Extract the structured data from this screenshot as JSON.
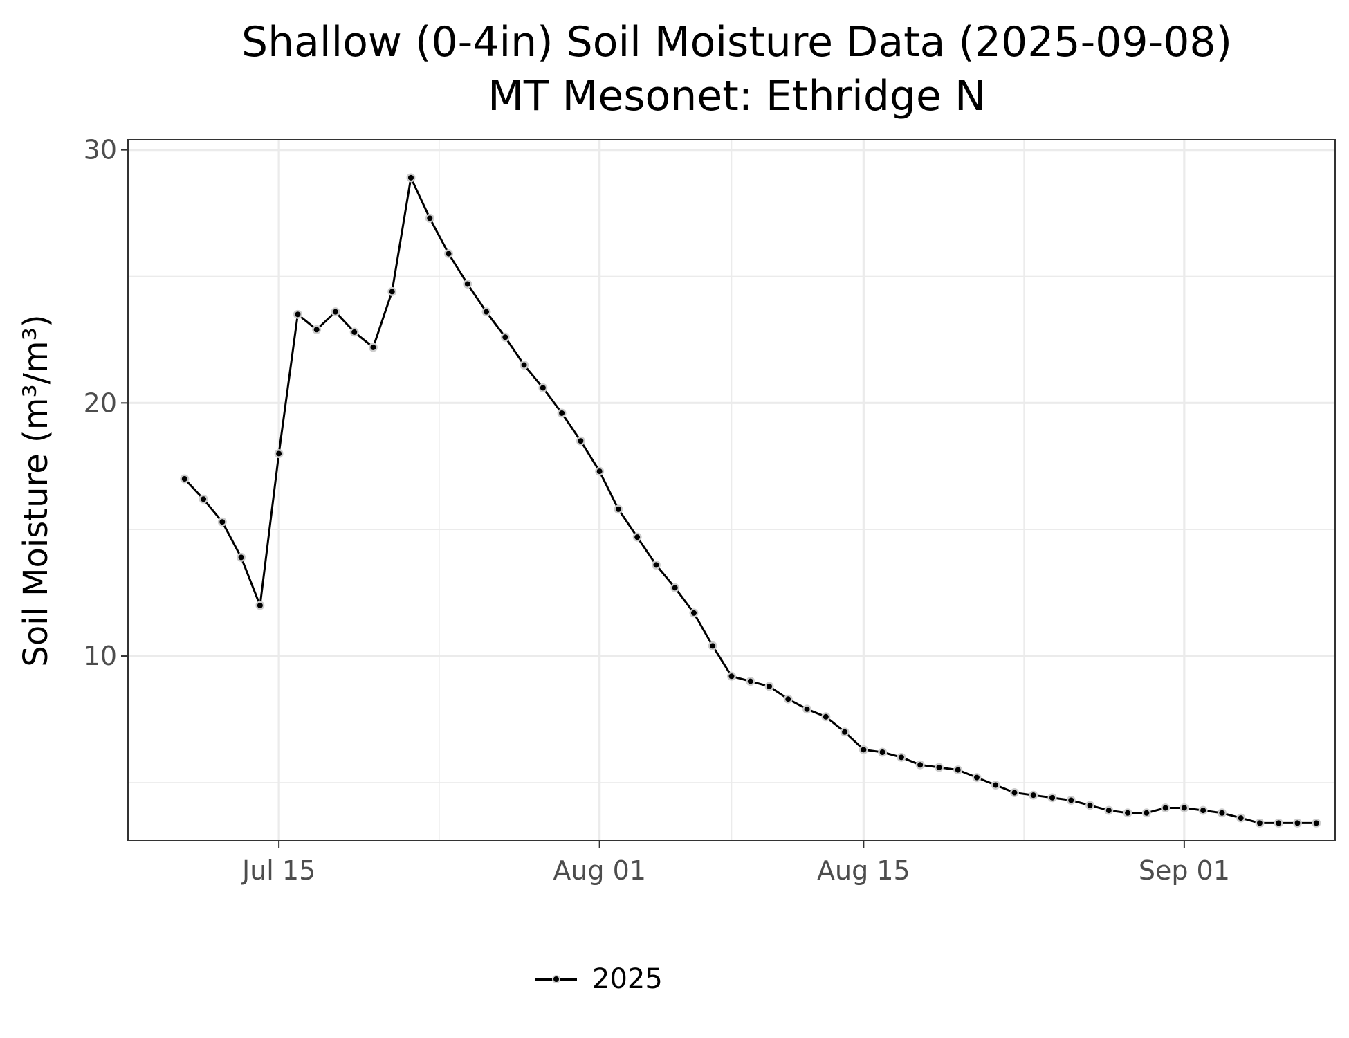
{
  "chart_data": {
    "type": "line",
    "title": "Shallow (0-4in) Soil Moisture Data (2025-09-08)",
    "subtitle": "MT Mesonet: Ethridge N",
    "ylabel": "Soil Moisture (m³/m³)",
    "xlabel": "",
    "ylim": [
      2.7,
      30.4
    ],
    "xlim": [
      "2025-07-07",
      "2025-09-09"
    ],
    "x_ticks": [
      {
        "date": "2025-07-15",
        "label": "Jul 15"
      },
      {
        "date": "2025-08-01",
        "label": "Aug 01"
      },
      {
        "date": "2025-08-15",
        "label": "Aug 15"
      },
      {
        "date": "2025-09-01",
        "label": "Sep 01"
      }
    ],
    "y_ticks": [
      10,
      20,
      30
    ],
    "grid": true,
    "legend_position": "bottom",
    "line_color": "#000000",
    "point_outline_color": "#cccccc",
    "series": [
      {
        "name": "2025",
        "x": [
          "2025-07-10",
          "2025-07-11",
          "2025-07-12",
          "2025-07-13",
          "2025-07-14",
          "2025-07-15",
          "2025-07-16",
          "2025-07-17",
          "2025-07-18",
          "2025-07-19",
          "2025-07-20",
          "2025-07-21",
          "2025-07-22",
          "2025-07-23",
          "2025-07-24",
          "2025-07-25",
          "2025-07-26",
          "2025-07-27",
          "2025-07-28",
          "2025-07-29",
          "2025-07-30",
          "2025-07-31",
          "2025-08-01",
          "2025-08-02",
          "2025-08-03",
          "2025-08-04",
          "2025-08-05",
          "2025-08-06",
          "2025-08-07",
          "2025-08-08",
          "2025-08-09",
          "2025-08-10",
          "2025-08-11",
          "2025-08-12",
          "2025-08-13",
          "2025-08-14",
          "2025-08-15",
          "2025-08-16",
          "2025-08-17",
          "2025-08-18",
          "2025-08-19",
          "2025-08-20",
          "2025-08-21",
          "2025-08-22",
          "2025-08-23",
          "2025-08-24",
          "2025-08-25",
          "2025-08-26",
          "2025-08-27",
          "2025-08-28",
          "2025-08-29",
          "2025-08-30",
          "2025-08-31",
          "2025-09-01",
          "2025-09-02",
          "2025-09-03",
          "2025-09-04",
          "2025-09-05",
          "2025-09-06",
          "2025-09-07",
          "2025-09-08"
        ],
        "values": [
          17.0,
          16.2,
          15.3,
          13.9,
          12.0,
          18.0,
          23.5,
          22.9,
          23.6,
          22.8,
          22.2,
          24.4,
          28.9,
          27.3,
          25.9,
          24.7,
          23.6,
          22.6,
          21.5,
          20.6,
          19.6,
          18.5,
          17.3,
          15.8,
          14.7,
          13.6,
          12.7,
          11.7,
          10.4,
          9.2,
          9.0,
          8.8,
          8.3,
          7.9,
          7.6,
          7.0,
          6.3,
          6.2,
          6.0,
          5.7,
          5.6,
          5.5,
          5.2,
          4.9,
          4.6,
          4.5,
          4.4,
          4.3,
          4.1,
          3.9,
          3.8,
          3.8,
          4.0,
          4.0,
          3.9,
          3.8,
          3.6,
          3.4,
          3.4,
          3.4,
          3.4
        ]
      }
    ]
  }
}
